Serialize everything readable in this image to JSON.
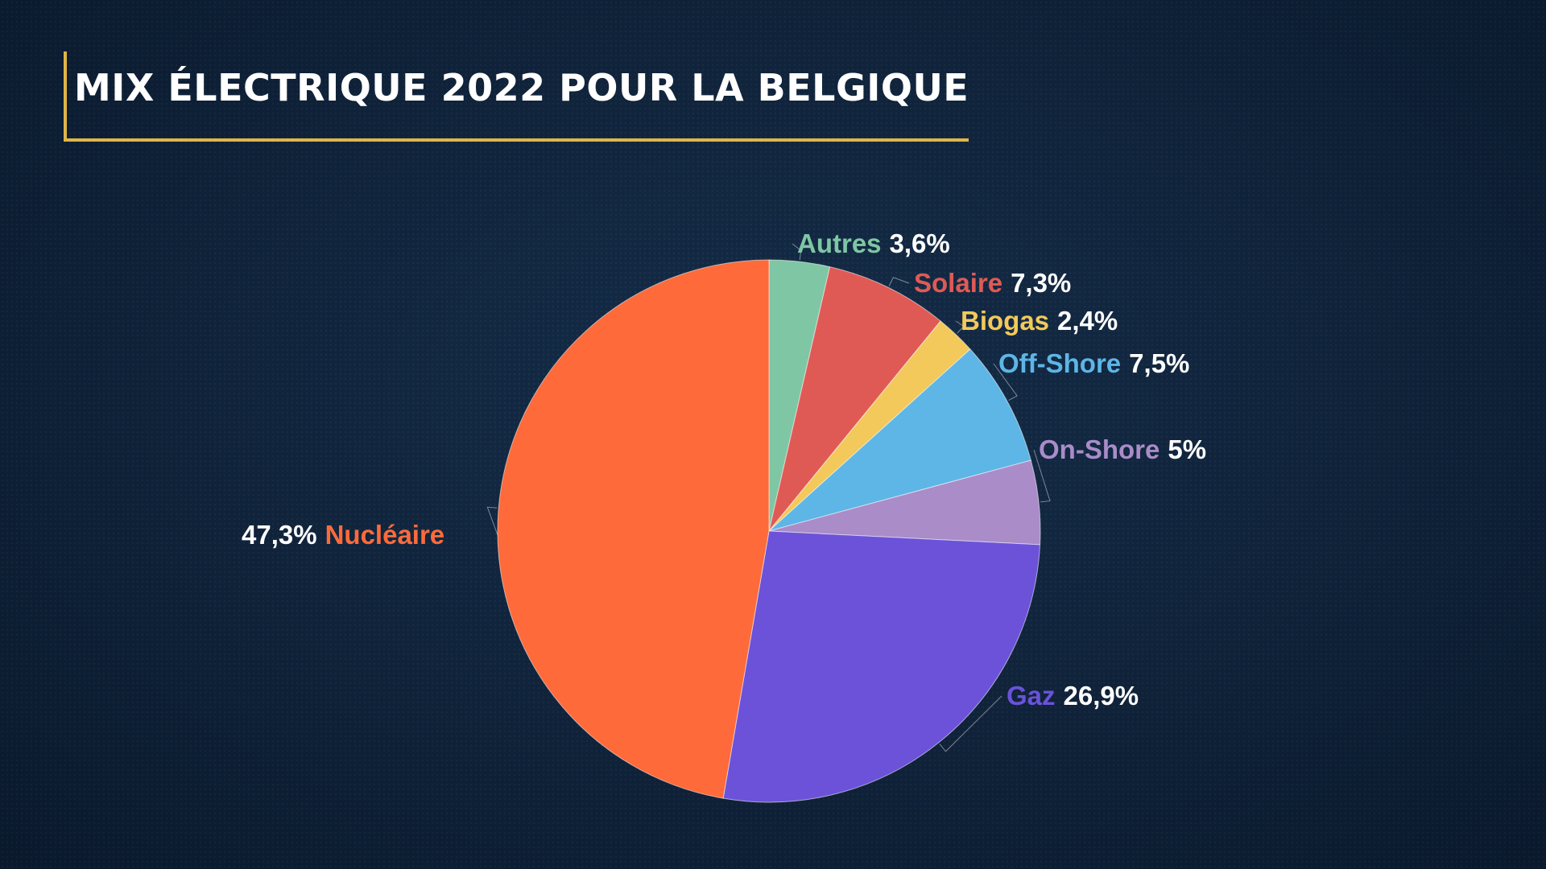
{
  "chart_data": {
    "type": "pie",
    "title": "MIX ÉLECTRIQUE 2022 POUR LA BELGIQUE",
    "start_angle_deg": 0,
    "direction": "clockwise",
    "slices": [
      {
        "name": "Autres",
        "value": 3.6,
        "label": "3,6%",
        "color": "#7fc6a4"
      },
      {
        "name": "Solaire",
        "value": 7.3,
        "label": "7,3%",
        "color": "#e05a55"
      },
      {
        "name": "Biogas",
        "value": 2.4,
        "label": "2,4%",
        "color": "#f2c95a"
      },
      {
        "name": "Off-Shore",
        "value": 7.5,
        "label": "7,5%",
        "color": "#5db6e6"
      },
      {
        "name": "On-Shore",
        "value": 5,
        "label": "5%",
        "color": "#a98cc8"
      },
      {
        "name": "Gaz",
        "value": 26.9,
        "label": "26,9%",
        "color": "#6b52d9"
      },
      {
        "name": "Nucléaire",
        "value": 47.3,
        "label": "47,3%",
        "color": "#fe6a3a"
      }
    ]
  }
}
